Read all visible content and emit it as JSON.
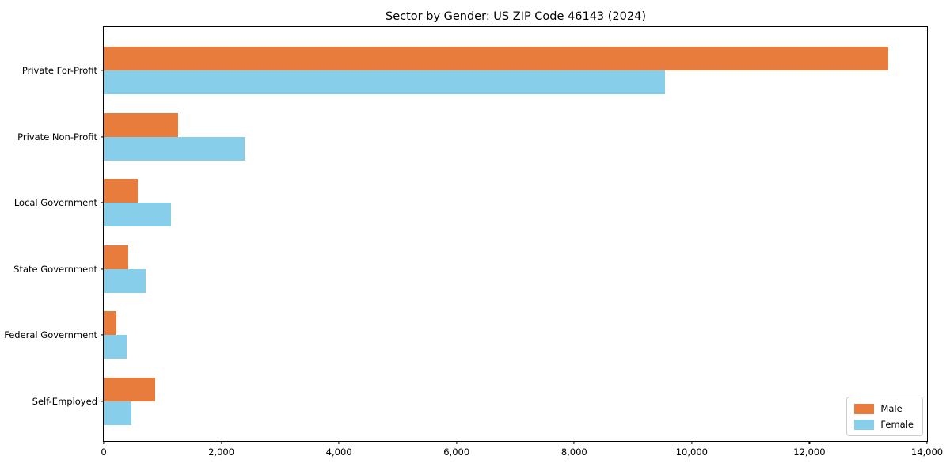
{
  "chart_data": {
    "type": "bar",
    "orientation": "horizontal",
    "title": "Sector by Gender: US ZIP Code 46143 (2024)",
    "categories": [
      "Private For-Profit",
      "Private Non-Profit",
      "Local Government",
      "State Government",
      "Federal Government",
      "Self-Employed"
    ],
    "series": [
      {
        "name": "Male",
        "color": "#e87c3c",
        "values": [
          13340,
          1260,
          580,
          420,
          220,
          870
        ]
      },
      {
        "name": "Female",
        "color": "#87ceeb",
        "values": [
          9550,
          2400,
          1150,
          720,
          390,
          470
        ]
      }
    ],
    "xlabel": "",
    "ylabel": "",
    "xlim": [
      0,
      14000
    ],
    "x_ticks": [
      0,
      2000,
      4000,
      6000,
      8000,
      10000,
      12000,
      14000
    ],
    "x_tick_labels": [
      "0",
      "2,000",
      "4,000",
      "6,000",
      "8,000",
      "10,000",
      "12,000",
      "14,000"
    ],
    "grid": false,
    "axes_box": true,
    "legend": {
      "position": "lower right",
      "entries": [
        "Male",
        "Female"
      ]
    }
  },
  "colors": {
    "male": "#e87c3c",
    "female": "#87ceeb",
    "axis": "#000000",
    "legend_border": "#cccccc",
    "background": "#ffffff"
  }
}
